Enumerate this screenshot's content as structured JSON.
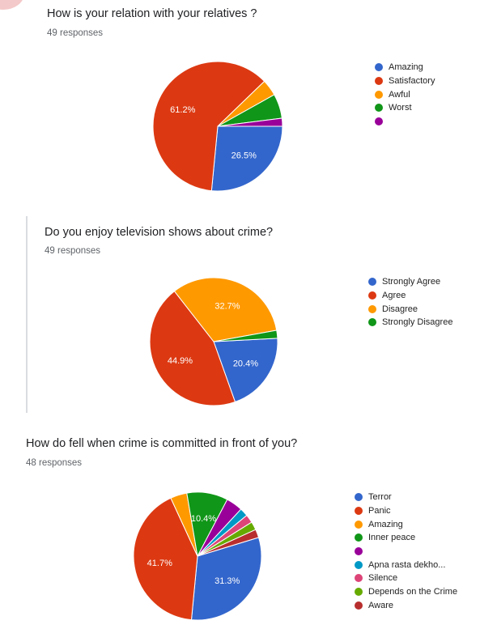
{
  "colors": {
    "blue": "#3366cc",
    "red": "#dc3912",
    "orange": "#ff9900",
    "green": "#109618",
    "purple": "#990099",
    "teal": "#0099c6",
    "pink": "#dd4477",
    "lime": "#66aa00",
    "darkred": "#b82e2e"
  },
  "chart_data": [
    {
      "type": "pie",
      "title": "How is your relation with your relatives ?",
      "responses": "49 responses",
      "categories": [
        "Amazing",
        "Satisfactory",
        "Awful",
        "Worst",
        ""
      ],
      "values": [
        26.5,
        61.2,
        4.1,
        6.1,
        2.0
      ],
      "slice_labels": [
        "26.5%",
        "61.2%",
        "",
        "",
        ""
      ],
      "colors": [
        "#3366cc",
        "#dc3912",
        "#ff9900",
        "#109618",
        "#990099"
      ],
      "legend": "right"
    },
    {
      "type": "pie",
      "title": "Do you enjoy television shows about crime?",
      "responses": "49 responses",
      "categories": [
        "Strongly Agree",
        "Agree",
        "Disagree",
        "Strongly Disagree"
      ],
      "values": [
        20.4,
        44.9,
        32.7,
        2.0
      ],
      "slice_labels": [
        "20.4%",
        "44.9%",
        "32.7%",
        ""
      ],
      "colors": [
        "#3366cc",
        "#dc3912",
        "#ff9900",
        "#109618"
      ],
      "legend": "right"
    },
    {
      "type": "pie",
      "title": "How do fell when crime is committed in front of you?",
      "responses": "48 responses",
      "categories": [
        "Terror",
        "Panic",
        "Amazing",
        "Inner peace",
        "",
        "Apna rasta dekho...",
        "Silence",
        "Depends on the Crime",
        "Aware"
      ],
      "values": [
        31.3,
        41.7,
        4.2,
        10.4,
        4.2,
        2.1,
        2.1,
        2.1,
        2.1
      ],
      "slice_labels": [
        "31.3%",
        "41.7%",
        "",
        "10.4%",
        "",
        "",
        "",
        "",
        ""
      ],
      "colors": [
        "#3366cc",
        "#dc3912",
        "#ff9900",
        "#109618",
        "#990099",
        "#0099c6",
        "#dd4477",
        "#66aa00",
        "#b82e2e"
      ],
      "legend": "right"
    }
  ]
}
